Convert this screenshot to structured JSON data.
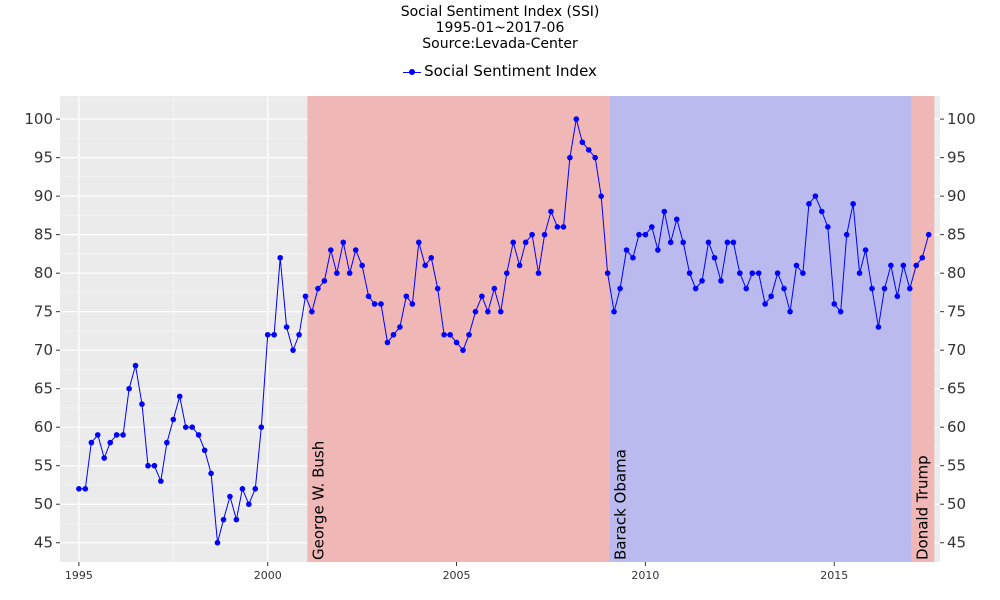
{
  "chart_data": {
    "type": "line",
    "title": "Social Sentiment Index (SSI)",
    "subtitle_lines": [
      "1995-01~2017-06",
      "Source:Levada-Center"
    ],
    "xlabel": "",
    "ylabel": "",
    "xlim": [
      1994.5,
      2017.8
    ],
    "ylim": [
      42.5,
      103
    ],
    "x_ticks": [
      1995,
      2000,
      2005,
      2010,
      2015
    ],
    "y_ticks": [
      45,
      50,
      55,
      60,
      65,
      70,
      75,
      80,
      85,
      90,
      95,
      100
    ],
    "grid": true,
    "secondary_y_axis": true,
    "legend_placement": "top-center",
    "series": [
      {
        "name": "Social Sentiment Index",
        "color": "#0000ff",
        "points": [
          [
            1995.0,
            52
          ],
          [
            1995.17,
            52
          ],
          [
            1995.33,
            58
          ],
          [
            1995.5,
            59
          ],
          [
            1995.67,
            56
          ],
          [
            1995.83,
            58
          ],
          [
            1996.0,
            59
          ],
          [
            1996.17,
            59
          ],
          [
            1996.33,
            65
          ],
          [
            1996.5,
            68
          ],
          [
            1996.67,
            63
          ],
          [
            1996.83,
            55
          ],
          [
            1997.0,
            55
          ],
          [
            1997.17,
            53
          ],
          [
            1997.33,
            58
          ],
          [
            1997.5,
            61
          ],
          [
            1997.67,
            64
          ],
          [
            1997.83,
            60
          ],
          [
            1998.0,
            60
          ],
          [
            1998.17,
            59
          ],
          [
            1998.33,
            57
          ],
          [
            1998.5,
            54
          ],
          [
            1998.67,
            45
          ],
          [
            1998.83,
            48
          ],
          [
            1999.0,
            51
          ],
          [
            1999.17,
            48
          ],
          [
            1999.33,
            52
          ],
          [
            1999.5,
            50
          ],
          [
            1999.67,
            52
          ],
          [
            1999.83,
            60
          ],
          [
            2000.0,
            72
          ],
          [
            2000.17,
            72
          ],
          [
            2000.33,
            82
          ],
          [
            2000.5,
            73
          ],
          [
            2000.67,
            70
          ],
          [
            2000.83,
            72
          ],
          [
            2001.0,
            77
          ],
          [
            2001.17,
            75
          ],
          [
            2001.33,
            78
          ],
          [
            2001.5,
            79
          ],
          [
            2001.67,
            83
          ],
          [
            2001.83,
            80
          ],
          [
            2002.0,
            84
          ],
          [
            2002.17,
            80
          ],
          [
            2002.33,
            83
          ],
          [
            2002.5,
            81
          ],
          [
            2002.67,
            77
          ],
          [
            2002.83,
            76
          ],
          [
            2003.0,
            76
          ],
          [
            2003.17,
            71
          ],
          [
            2003.33,
            72
          ],
          [
            2003.5,
            73
          ],
          [
            2003.67,
            77
          ],
          [
            2003.83,
            76
          ],
          [
            2004.0,
            84
          ],
          [
            2004.17,
            81
          ],
          [
            2004.33,
            82
          ],
          [
            2004.5,
            78
          ],
          [
            2004.67,
            72
          ],
          [
            2004.83,
            72
          ],
          [
            2005.0,
            71
          ],
          [
            2005.17,
            70
          ],
          [
            2005.33,
            72
          ],
          [
            2005.5,
            75
          ],
          [
            2005.67,
            77
          ],
          [
            2005.83,
            75
          ],
          [
            2006.0,
            78
          ],
          [
            2006.17,
            75
          ],
          [
            2006.33,
            80
          ],
          [
            2006.5,
            84
          ],
          [
            2006.67,
            81
          ],
          [
            2006.83,
            84
          ],
          [
            2007.0,
            85
          ],
          [
            2007.17,
            80
          ],
          [
            2007.33,
            85
          ],
          [
            2007.5,
            88
          ],
          [
            2007.67,
            86
          ],
          [
            2007.83,
            86
          ],
          [
            2008.0,
            95
          ],
          [
            2008.17,
            100
          ],
          [
            2008.33,
            97
          ],
          [
            2008.5,
            96
          ],
          [
            2008.67,
            95
          ],
          [
            2008.83,
            90
          ],
          [
            2009.0,
            80
          ],
          [
            2009.17,
            75
          ],
          [
            2009.33,
            78
          ],
          [
            2009.5,
            83
          ],
          [
            2009.67,
            82
          ],
          [
            2009.83,
            85
          ],
          [
            2010.0,
            85
          ],
          [
            2010.17,
            86
          ],
          [
            2010.33,
            83
          ],
          [
            2010.5,
            88
          ],
          [
            2010.67,
            84
          ],
          [
            2010.83,
            87
          ],
          [
            2011.0,
            84
          ],
          [
            2011.17,
            80
          ],
          [
            2011.33,
            78
          ],
          [
            2011.5,
            79
          ],
          [
            2011.67,
            84
          ],
          [
            2011.83,
            82
          ],
          [
            2012.0,
            79
          ],
          [
            2012.17,
            84
          ],
          [
            2012.33,
            84
          ],
          [
            2012.5,
            80
          ],
          [
            2012.67,
            78
          ],
          [
            2012.83,
            80
          ],
          [
            2013.0,
            80
          ],
          [
            2013.17,
            76
          ],
          [
            2013.33,
            77
          ],
          [
            2013.5,
            80
          ],
          [
            2013.67,
            78
          ],
          [
            2013.83,
            75
          ],
          [
            2014.0,
            81
          ],
          [
            2014.17,
            80
          ],
          [
            2014.33,
            89
          ],
          [
            2014.5,
            90
          ],
          [
            2014.67,
            88
          ],
          [
            2014.83,
            86
          ],
          [
            2015.0,
            76
          ],
          [
            2015.17,
            75
          ],
          [
            2015.33,
            85
          ],
          [
            2015.5,
            89
          ],
          [
            2015.67,
            80
          ],
          [
            2015.83,
            83
          ],
          [
            2016.0,
            78
          ],
          [
            2016.17,
            73
          ],
          [
            2016.33,
            78
          ],
          [
            2016.5,
            81
          ],
          [
            2016.67,
            77
          ],
          [
            2016.83,
            81
          ],
          [
            2017.0,
            78
          ],
          [
            2017.17,
            81
          ],
          [
            2017.33,
            82
          ],
          [
            2017.5,
            85
          ]
        ]
      }
    ],
    "presidencies": [
      {
        "label": "George W. Bush",
        "start": 2001.05,
        "end": 2009.05,
        "color": "#f0b7b7"
      },
      {
        "label": "Barack Obama",
        "start": 2009.05,
        "end": 2017.05,
        "color": "#babaee"
      },
      {
        "label": "Donald Trump",
        "start": 2017.05,
        "end": 2017.65,
        "color": "#f0b7b7"
      }
    ],
    "colors": {
      "panel_background": "#ebebeb",
      "grid_line": "#ffffff",
      "axis_text": "#333333"
    }
  }
}
